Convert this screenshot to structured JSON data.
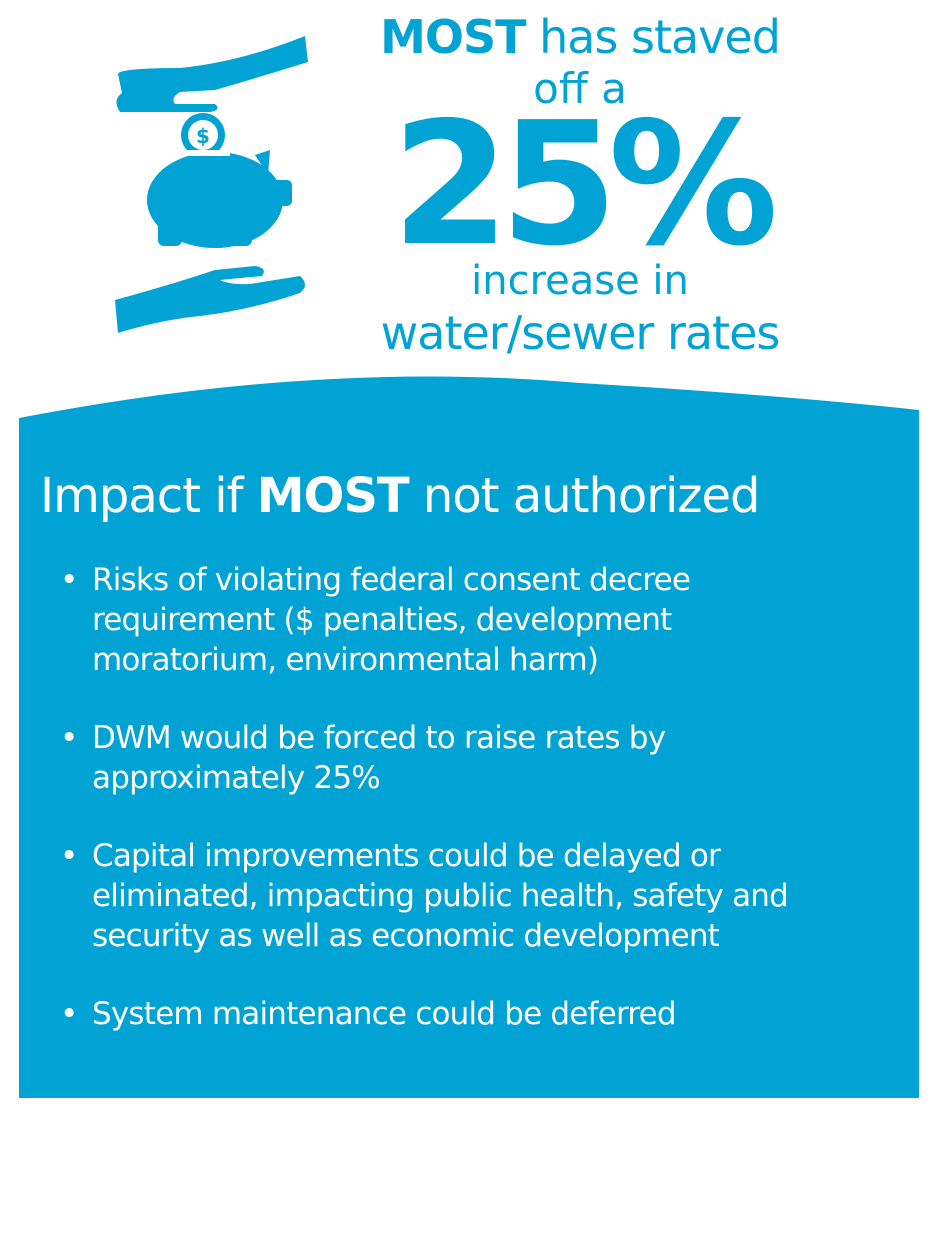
{
  "header": {
    "line1_bold": "MOST",
    "line1_rest": "has staved",
    "line2": "off a",
    "figure": "25%",
    "line3": "increase in",
    "line4": "water/sewer rates",
    "coin_symbol": "$"
  },
  "panel": {
    "title_start": "Impact if",
    "title_bold": "MOST",
    "title_end": "not authorized",
    "bullets": [
      "Risks of violating federal consent decree requirement ($ penalties, development moratorium, environmental harm)",
      "DWM would be forced to raise rates by approximately 25%",
      "Capital improvements could be delayed or eliminated, impacting public health, safety and security as well as economic development",
      "System maintenance could be deferred"
    ]
  }
}
